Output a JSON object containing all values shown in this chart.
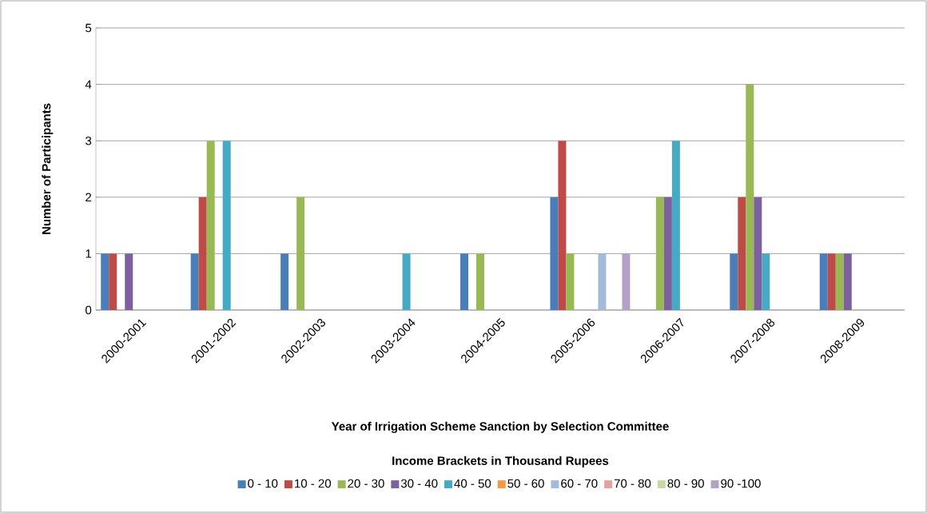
{
  "chart_data": {
    "type": "bar",
    "xlabel": "Year of Irrigation Scheme Sanction by Selection Committee",
    "ylabel": "Number of Participants",
    "legend_title": "Income Brackets in Thousand Rupees",
    "categories": [
      "2000-2001",
      "2001-2002",
      "2002-2003",
      "2003-2004",
      "2004-2005",
      "2005-2006",
      "2006-2007",
      "2007-2008",
      "2008-2009"
    ],
    "series": [
      {
        "name": "0 - 10",
        "color": "#4a7ebb",
        "values": [
          1,
          1,
          1,
          0,
          1,
          2,
          0,
          1,
          1
        ]
      },
      {
        "name": "10 - 20",
        "color": "#be4b48",
        "values": [
          1,
          2,
          0,
          0,
          0,
          3,
          0,
          2,
          1
        ]
      },
      {
        "name": "20 - 30",
        "color": "#98b954",
        "values": [
          0,
          3,
          2,
          0,
          1,
          1,
          2,
          4,
          1
        ]
      },
      {
        "name": "30 - 40",
        "color": "#7d60a0",
        "values": [
          1,
          0,
          0,
          0,
          0,
          0,
          2,
          2,
          1
        ]
      },
      {
        "name": "40 - 50",
        "color": "#46aac5",
        "values": [
          0,
          3,
          0,
          1,
          0,
          0,
          3,
          1,
          0
        ]
      },
      {
        "name": "50 - 60",
        "color": "#f79646",
        "values": [
          0,
          0,
          0,
          0,
          0,
          0,
          0,
          0,
          0
        ]
      },
      {
        "name": "60 - 70",
        "color": "#a5b9db",
        "values": [
          0,
          0,
          0,
          0,
          0,
          1,
          0,
          0,
          0
        ]
      },
      {
        "name": "70 - 80",
        "color": "#e6a19f",
        "values": [
          0,
          0,
          0,
          0,
          0,
          0,
          0,
          0,
          0
        ]
      },
      {
        "name": "80 - 90",
        "color": "#c6d9a0",
        "values": [
          0,
          0,
          0,
          0,
          0,
          0,
          0,
          0,
          0
        ]
      },
      {
        "name": "90 -100",
        "color": "#b3a2c7",
        "values": [
          0,
          0,
          0,
          0,
          0,
          1,
          0,
          0,
          0
        ]
      }
    ],
    "ylim": [
      0,
      5
    ],
    "yticks": [
      0,
      1,
      2,
      3,
      4,
      5
    ],
    "grid": "y",
    "legend": "bottom"
  }
}
